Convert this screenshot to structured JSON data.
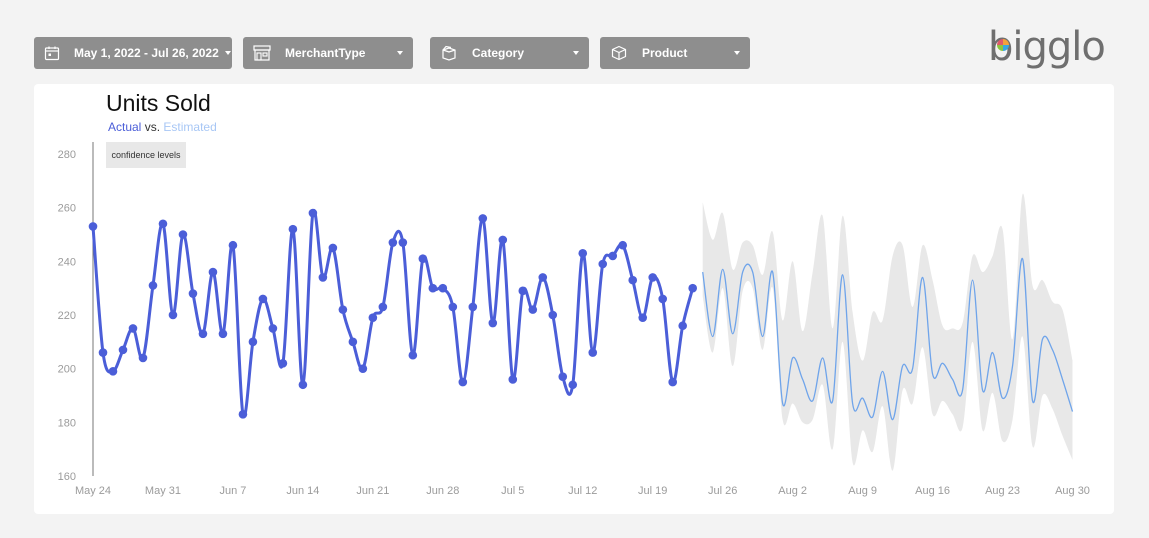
{
  "filters": {
    "date": {
      "label": "May 1, 2022 - Jul 26, 2022",
      "icon": "calendar-icon"
    },
    "merchant": {
      "label": "MerchantType",
      "icon": "store-icon"
    },
    "category": {
      "label": "Category",
      "icon": "box-open-icon"
    },
    "product": {
      "label": "Product",
      "icon": "box-icon"
    }
  },
  "logo": {
    "text": "bigglo"
  },
  "chart_data": {
    "type": "line",
    "title": "Units Sold",
    "subtitle": {
      "actual": "Actual",
      "vs": "vs.",
      "estimated": "Estimated"
    },
    "annotation": "confidence levels",
    "ylim": [
      160,
      280
    ],
    "yticks": [
      160,
      180,
      200,
      220,
      240,
      260,
      280
    ],
    "x_tick_labels": [
      "May 24",
      "May 31",
      "Jun 7",
      "Jun 14",
      "Jun 21",
      "Jun 28",
      "Jul 5",
      "Jul 12",
      "Jul 19",
      "Jul 26",
      "Aug 2",
      "Aug 9",
      "Aug 16",
      "Aug 23",
      "Aug 30"
    ],
    "colors": {
      "actual": "#4b5ed8",
      "estimated": "#6fa4ea",
      "band": "#e8e8e8"
    },
    "series": [
      {
        "name": "Actual",
        "start": "May 24",
        "values": [
          253,
          206,
          199,
          207,
          215,
          204,
          231,
          254,
          220,
          250,
          228,
          213,
          236,
          213,
          246,
          183,
          210,
          226,
          215,
          202,
          252,
          194,
          258,
          234,
          245,
          222,
          210,
          200,
          219,
          223,
          247,
          247,
          205,
          241,
          230,
          230,
          223,
          195,
          223,
          256,
          217,
          248,
          196,
          229,
          222,
          234,
          220,
          197,
          194,
          243,
          206,
          239,
          242,
          246,
          233,
          219,
          234,
          226,
          195,
          216,
          230
        ]
      },
      {
        "name": "Estimated",
        "start": "Jul 24",
        "values": [
          236,
          212,
          237,
          213,
          236,
          236,
          212,
          236,
          187,
          204,
          196,
          188,
          204,
          188,
          235,
          187,
          189,
          182,
          199,
          181,
          201,
          200,
          234,
          198,
          202,
          196,
          192,
          233,
          192,
          206,
          189,
          201,
          241,
          188,
          211,
          207,
          196,
          184
        ],
        "lower": [
          227,
          206,
          230,
          201,
          229,
          230,
          207,
          230,
          181,
          187,
          180,
          181,
          194,
          170,
          210,
          165,
          177,
          169,
          186,
          162,
          192,
          187,
          208,
          183,
          188,
          183,
          178,
          210,
          177,
          191,
          173,
          181,
          212,
          171,
          190,
          185,
          175,
          166
        ],
        "upper": [
          262,
          248,
          258,
          237,
          247,
          246,
          235,
          251,
          218,
          240,
          214,
          236,
          257,
          215,
          257,
          221,
          203,
          221,
          218,
          242,
          246,
          223,
          246,
          233,
          216,
          215,
          217,
          242,
          236,
          242,
          252,
          211,
          265,
          231,
          233,
          225,
          222,
          203
        ]
      }
    ]
  }
}
